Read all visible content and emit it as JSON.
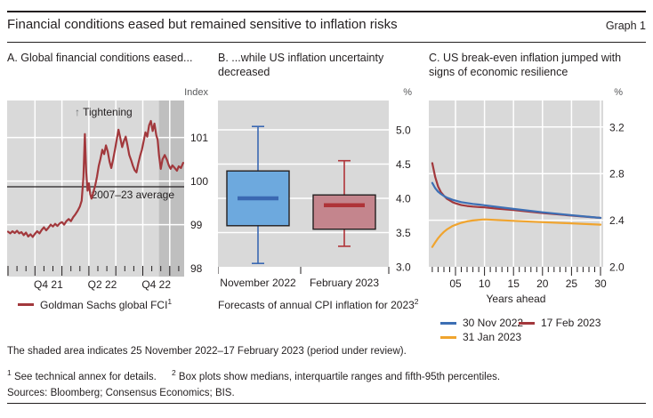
{
  "header": {
    "title": "Financial conditions eased but remained sensitive to inflation risks",
    "graph_label": "Graph 1"
  },
  "panels": {
    "a": {
      "title": "A. Global financial conditions eased...",
      "unit": "Index",
      "legend": [
        {
          "label": "Goldman Sachs global FCI",
          "sup": "1",
          "color": "#A2383C"
        }
      ]
    },
    "b": {
      "title": "B. ...while US inflation uncertainty decreased",
      "unit": "%",
      "caption": "Forecasts of annual CPI inflation for 2023",
      "caption_sup": "2"
    },
    "c": {
      "title": "C. US break-even inflation jumped with signs of economic resilience",
      "unit": "%",
      "xlabel": "Years ahead",
      "legend": [
        {
          "label": "30 Nov 2022",
          "color": "#3D6FB4"
        },
        {
          "label": "17 Feb 2023",
          "color": "#A2383C"
        },
        {
          "label": "31 Jan 2023",
          "color": "#F0A42E"
        }
      ]
    }
  },
  "chart_data": [
    {
      "panel": "A",
      "type": "line",
      "title": "A. Global financial conditions eased...",
      "ylabel": "Index",
      "ylim": [
        97.8,
        101.85
      ],
      "yticks": [
        {
          "v": 98,
          "label": "98"
        },
        {
          "v": 99,
          "label": "99"
        },
        {
          "v": 100,
          "label": "100"
        },
        {
          "v": 101,
          "label": "101"
        }
      ],
      "x_unit": "months since Jul 2021",
      "xticks": [
        {
          "m": 4.5,
          "label": "Q4 21"
        },
        {
          "m": 10.5,
          "label": "Q2 22"
        },
        {
          "m": 16.5,
          "label": "Q4 22"
        }
      ],
      "quarter_gridline_months": [
        3,
        6,
        9,
        12,
        15,
        18
      ],
      "plot_bg": "#D9D9D9",
      "shade_color": "#BFBFBF",
      "shaded_region_months": [
        16.8,
        19.5
      ],
      "annotation_arrow": "↑",
      "annotation_text": "Tightening",
      "average_line": {
        "value": 99.87,
        "label": "2007–23 average"
      },
      "series": [
        {
          "name": "Goldman Sachs global FCI",
          "color": "#A2383C",
          "points": [
            [
              0,
              98.84
            ],
            [
              0.25,
              98.8
            ],
            [
              0.5,
              98.85
            ],
            [
              0.75,
              98.81
            ],
            [
              1,
              98.86
            ],
            [
              1.25,
              98.8
            ],
            [
              1.5,
              98.83
            ],
            [
              1.75,
              98.76
            ],
            [
              2,
              98.82
            ],
            [
              2.25,
              98.73
            ],
            [
              2.5,
              98.78
            ],
            [
              2.75,
              98.72
            ],
            [
              3,
              98.79
            ],
            [
              3.25,
              98.85
            ],
            [
              3.5,
              98.8
            ],
            [
              3.75,
              98.88
            ],
            [
              4,
              98.94
            ],
            [
              4.25,
              98.87
            ],
            [
              4.5,
              98.93
            ],
            [
              4.75,
              99.0
            ],
            [
              5,
              98.96
            ],
            [
              5.25,
              99.02
            ],
            [
              5.5,
              98.97
            ],
            [
              5.75,
              99.03
            ],
            [
              6,
              99.06
            ],
            [
              6.25,
              99.0
            ],
            [
              6.5,
              99.08
            ],
            [
              6.75,
              99.13
            ],
            [
              7,
              99.08
            ],
            [
              7.25,
              99.17
            ],
            [
              7.5,
              99.24
            ],
            [
              7.75,
              99.32
            ],
            [
              8,
              99.42
            ],
            [
              8.2,
              99.55
            ],
            [
              8.4,
              100.1
            ],
            [
              8.55,
              101.08
            ],
            [
              8.7,
              100.2
            ],
            [
              8.85,
              99.78
            ],
            [
              9,
              99.95
            ],
            [
              9.15,
              99.7
            ],
            [
              9.3,
              99.6
            ],
            [
              9.5,
              99.75
            ],
            [
              9.7,
              99.9
            ],
            [
              9.9,
              100.1
            ],
            [
              10.1,
              100.35
            ],
            [
              10.3,
              100.52
            ],
            [
              10.5,
              100.72
            ],
            [
              10.7,
              100.62
            ],
            [
              10.9,
              100.82
            ],
            [
              11.1,
              100.68
            ],
            [
              11.3,
              100.45
            ],
            [
              11.5,
              100.3
            ],
            [
              11.7,
              100.5
            ],
            [
              11.9,
              100.72
            ],
            [
              12.1,
              100.95
            ],
            [
              12.3,
              101.18
            ],
            [
              12.5,
              100.98
            ],
            [
              12.7,
              100.78
            ],
            [
              12.9,
              100.92
            ],
            [
              13.1,
              101.02
            ],
            [
              13.3,
              100.82
            ],
            [
              13.5,
              100.6
            ],
            [
              13.7,
              100.48
            ],
            [
              13.9,
              100.35
            ],
            [
              14.1,
              100.25
            ],
            [
              14.3,
              100.2
            ],
            [
              14.5,
              100.4
            ],
            [
              14.7,
              100.58
            ],
            [
              14.9,
              100.72
            ],
            [
              15.1,
              100.92
            ],
            [
              15.3,
              101.12
            ],
            [
              15.5,
              101.02
            ],
            [
              15.7,
              101.28
            ],
            [
              15.9,
              101.38
            ],
            [
              16.1,
              101.15
            ],
            [
              16.3,
              101.32
            ],
            [
              16.5,
              101.05
            ],
            [
              16.65,
              100.95
            ],
            [
              16.8,
              100.6
            ],
            [
              17,
              100.28
            ],
            [
              17.2,
              100.5
            ],
            [
              17.45,
              100.6
            ],
            [
              17.7,
              100.48
            ],
            [
              17.9,
              100.36
            ],
            [
              18.1,
              100.28
            ],
            [
              18.3,
              100.36
            ],
            [
              18.55,
              100.3
            ],
            [
              18.8,
              100.24
            ],
            [
              19,
              100.34
            ],
            [
              19.25,
              100.3
            ],
            [
              19.5,
              100.42
            ]
          ]
        }
      ]
    },
    {
      "panel": "B",
      "type": "boxplot",
      "title": "B. ...while US inflation uncertainty decreased",
      "ylabel": "%",
      "ylim": [
        3.0,
        5.43
      ],
      "yticks": [
        {
          "v": 3.0,
          "label": "3.0"
        },
        {
          "v": 3.5,
          "label": "3.5"
        },
        {
          "v": 4.0,
          "label": "4.0"
        },
        {
          "v": 4.5,
          "label": "4.5"
        },
        {
          "v": 5.0,
          "label": "5.0"
        }
      ],
      "plot_bg": "#D9D9D9",
      "caption": "Forecasts of annual CPI inflation for 2023",
      "boxes": [
        {
          "label": "November 2022",
          "whisker_low": 3.05,
          "q1": 3.6,
          "median": 4.0,
          "q3": 4.4,
          "whisker_high": 5.05,
          "fill": "#6DA9DE",
          "line": "#3A68B2"
        },
        {
          "label": "February 2023",
          "whisker_low": 3.3,
          "q1": 3.55,
          "median": 3.9,
          "q3": 4.05,
          "whisker_high": 4.55,
          "fill": "#C4858D",
          "line": "#AF3338"
        }
      ]
    },
    {
      "panel": "C",
      "type": "line",
      "title": "C. US break-even inflation jumped with signs of economic resilience",
      "ylabel": "%",
      "xlabel": "Years ahead",
      "ylim": [
        2.0,
        3.43
      ],
      "xlim": [
        0.5,
        30.5
      ],
      "yticks": [
        {
          "v": 2.0,
          "label": "2.0"
        },
        {
          "v": 2.4,
          "label": "2.4"
        },
        {
          "v": 2.8,
          "label": "2.8"
        },
        {
          "v": 3.2,
          "label": "3.2"
        }
      ],
      "xticks": [
        {
          "v": 5,
          "label": "05"
        },
        {
          "v": 10,
          "label": "10"
        },
        {
          "v": 15,
          "label": "15"
        },
        {
          "v": 20,
          "label": "20"
        },
        {
          "v": 25,
          "label": "25"
        },
        {
          "v": 30,
          "label": "30"
        }
      ],
      "plot_bg": "#D9D9D9",
      "series": [
        {
          "name": "17 Feb 2023",
          "color": "#A2383C",
          "points": [
            [
              1,
              2.89
            ],
            [
              1.5,
              2.77
            ],
            [
              2,
              2.69
            ],
            [
              2.5,
              2.64
            ],
            [
              3,
              2.61
            ],
            [
              3.5,
              2.585
            ],
            [
              4,
              2.57
            ],
            [
              4.5,
              2.555
            ],
            [
              5,
              2.545
            ],
            [
              6,
              2.53
            ],
            [
              7,
              2.522
            ],
            [
              8,
              2.517
            ],
            [
              9,
              2.513
            ],
            [
              10,
              2.51
            ],
            [
              12,
              2.5
            ],
            [
              15,
              2.487
            ],
            [
              20,
              2.462
            ],
            [
              25,
              2.44
            ],
            [
              30,
              2.42
            ]
          ]
        },
        {
          "name": "30 Nov 2022",
          "color": "#3D6FB4",
          "points": [
            [
              1,
              2.72
            ],
            [
              1.5,
              2.675
            ],
            [
              2,
              2.645
            ],
            [
              2.5,
              2.625
            ],
            [
              3,
              2.608
            ],
            [
              3.5,
              2.595
            ],
            [
              4,
              2.585
            ],
            [
              4.5,
              2.575
            ],
            [
              5,
              2.568
            ],
            [
              6,
              2.555
            ],
            [
              7,
              2.547
            ],
            [
              8,
              2.54
            ],
            [
              9,
              2.534
            ],
            [
              10,
              2.528
            ],
            [
              12,
              2.515
            ],
            [
              15,
              2.497
            ],
            [
              20,
              2.468
            ],
            [
              25,
              2.443
            ],
            [
              30,
              2.42
            ]
          ]
        },
        {
          "name": "31 Jan 2023",
          "color": "#F0A42E",
          "points": [
            [
              1,
              2.17
            ],
            [
              1.5,
              2.21
            ],
            [
              2,
              2.245
            ],
            [
              2.5,
              2.275
            ],
            [
              3,
              2.3
            ],
            [
              3.5,
              2.32
            ],
            [
              4,
              2.335
            ],
            [
              4.5,
              2.35
            ],
            [
              5,
              2.36
            ],
            [
              6,
              2.378
            ],
            [
              7,
              2.39
            ],
            [
              8,
              2.398
            ],
            [
              9,
              2.403
            ],
            [
              10,
              2.407
            ],
            [
              12,
              2.402
            ],
            [
              15,
              2.395
            ],
            [
              20,
              2.383
            ],
            [
              25,
              2.373
            ],
            [
              30,
              2.362
            ]
          ]
        }
      ]
    }
  ],
  "footer": {
    "note": "The shaded area indicates 25 November 2022–17 February 2023 (period under review).",
    "footnote1_marker": "1",
    "footnote1_text": "See technical annex for details.",
    "footnote2_marker": "2",
    "footnote2_text": "Box plots show medians, interquartile ranges and fifth-95th percentiles.",
    "sources": "Sources: Bloomberg; Consensus Economics; BIS."
  }
}
